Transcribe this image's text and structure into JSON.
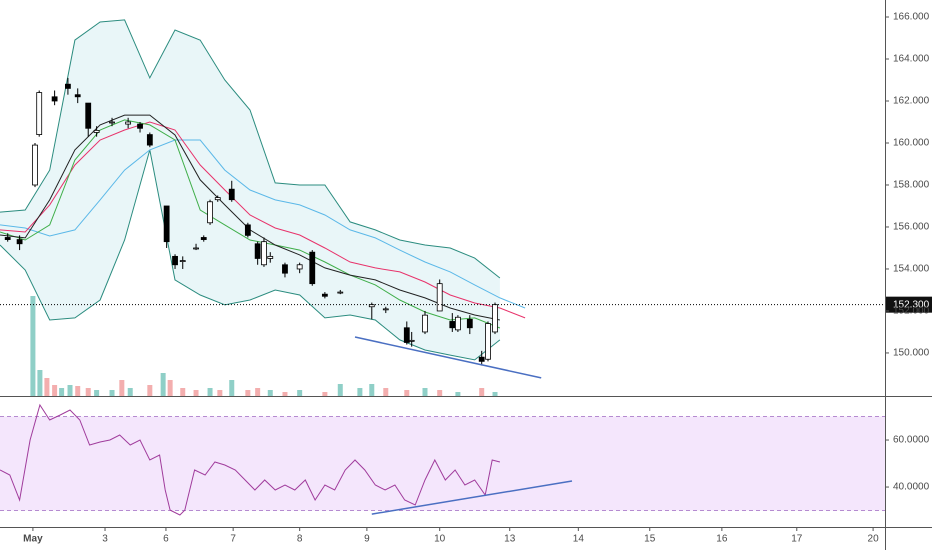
{
  "chart_data": [
    {
      "type": "candlestick",
      "xlim": [
        -0.47,
        12.17
      ],
      "ylim": [
        147.95,
        166.81
      ],
      "yticks": [
        {
          "value": 150,
          "label": "150.000"
        },
        {
          "value": 152,
          "label": "152.000"
        },
        {
          "value": 154,
          "label": "154.000"
        },
        {
          "value": 156,
          "label": "156.000"
        },
        {
          "value": 158,
          "label": "158.000"
        },
        {
          "value": 160,
          "label": "160.000"
        },
        {
          "value": 162,
          "label": "162.000"
        },
        {
          "value": 164,
          "label": "164.000"
        },
        {
          "value": 166,
          "label": "166.000"
        }
      ],
      "candles": {
        "x": [
          -0.36,
          -0.19,
          0.03,
          0.09,
          0.31,
          0.5,
          0.64,
          0.79,
          0.91,
          1.13,
          1.36,
          1.53,
          1.67,
          1.91,
          2.03,
          2.14,
          2.33,
          2.44,
          2.53,
          2.64,
          2.84,
          3.07,
          3.21,
          3.3,
          3.39,
          3.6,
          3.81,
          3.99,
          4.17,
          4.39,
          4.84,
          5.04,
          5.34,
          5.41,
          5.6,
          5.81,
          5.99,
          6.07,
          6.24,
          6.41,
          6.5,
          6.6
        ],
        "open": [
          155.5,
          155.4,
          158.0,
          160.4,
          162.2,
          162.8,
          162.3,
          161.9,
          160.5,
          161.0,
          160.9,
          160.9,
          160.4,
          157.0,
          154.6,
          154.4,
          155.0,
          155.5,
          156.2,
          157.3,
          157.8,
          156.1,
          155.2,
          154.2,
          154.5,
          154.2,
          154.0,
          154.8,
          152.8,
          152.9,
          152.2,
          152.1,
          151.2,
          150.6,
          151.0,
          152.0,
          151.5,
          151.1,
          151.6,
          149.8,
          149.7,
          151.0
        ],
        "high": [
          155.7,
          155.6,
          160.0,
          162.5,
          162.5,
          163.1,
          162.6,
          161.9,
          160.8,
          161.2,
          161.2,
          161.0,
          160.5,
          157.0,
          154.7,
          154.6,
          155.2,
          155.6,
          157.3,
          157.5,
          158.2,
          156.2,
          155.3,
          155.5,
          154.8,
          154.3,
          154.3,
          154.9,
          152.9,
          153.0,
          152.4,
          152.2,
          151.5,
          151.0,
          152.0,
          153.5,
          151.9,
          151.8,
          151.8,
          150.1,
          151.5,
          152.4
        ],
        "low": [
          155.3,
          154.9,
          157.9,
          160.3,
          161.8,
          162.3,
          161.9,
          160.3,
          160.3,
          160.8,
          160.7,
          160.5,
          159.8,
          155.0,
          154.0,
          154.0,
          154.9,
          155.3,
          156.1,
          157.2,
          157.2,
          155.5,
          154.2,
          154.1,
          154.3,
          153.6,
          153.8,
          153.2,
          152.6,
          152.8,
          151.6,
          151.9,
          150.4,
          150.3,
          150.9,
          152.0,
          151.0,
          151.0,
          150.9,
          149.4,
          149.6,
          150.9
        ],
        "close": [
          155.4,
          155.2,
          159.9,
          162.4,
          162.0,
          162.6,
          162.2,
          160.7,
          160.6,
          161.0,
          161.0,
          160.7,
          159.9,
          155.3,
          154.2,
          154.4,
          155.0,
          155.4,
          157.2,
          157.4,
          157.3,
          155.6,
          154.5,
          155.3,
          154.6,
          153.8,
          154.2,
          153.3,
          152.7,
          152.9,
          152.3,
          152.1,
          150.5,
          150.6,
          151.8,
          153.3,
          151.2,
          151.7,
          151.2,
          149.6,
          151.4,
          152.3
        ]
      },
      "x": [
        -0.47,
        -0.11,
        0.24,
        0.6,
        0.96,
        1.31,
        1.67,
        2.03,
        2.39,
        2.74,
        3.1,
        3.46,
        3.81,
        4.17,
        4.53,
        4.89,
        5.24,
        5.6,
        5.96,
        6.31,
        6.67,
        7.03,
        7.39
      ],
      "series": [
        {
          "color": "#2b8c7f",
          "values": [
            156.71,
            156.81,
            158.71,
            164.9,
            165.76,
            165.86,
            163.1,
            165.38,
            164.9,
            163.0,
            161.57,
            158.1,
            158.0,
            158.0,
            156.24,
            155.86,
            155.38,
            155.14,
            155.0,
            154.52,
            153.57,
            null,
            null
          ]
        },
        {
          "color": "#2b8c7f",
          "values": [
            155.14,
            153.95,
            151.57,
            151.67,
            152.52,
            155.38,
            159.67,
            153.48,
            152.76,
            152.29,
            152.52,
            153.0,
            152.76,
            151.67,
            151.81,
            151.57,
            150.62,
            150.14,
            149.9,
            149.67,
            150.62,
            null,
            null
          ]
        },
        {
          "color": "#5bb8e8",
          "values": [
            156.1,
            155.95,
            155.57,
            155.86,
            157.29,
            158.71,
            159.67,
            160.14,
            160.14,
            158.71,
            157.76,
            157.29,
            157.05,
            156.57,
            155.86,
            155.48,
            154.9,
            154.33,
            153.86,
            153.24,
            152.62,
            152.14,
            null
          ]
        },
        {
          "color": "#e8336b",
          "values": [
            155.86,
            155.76,
            157.05,
            158.95,
            160.14,
            160.62,
            161.0,
            160.62,
            158.95,
            157.76,
            156.57,
            155.95,
            155.62,
            155.0,
            154.33,
            154.05,
            153.86,
            153.38,
            152.76,
            152.38,
            152.14,
            151.67,
            null
          ]
        },
        {
          "color": "#3fae49",
          "values": [
            155.76,
            155.38,
            156.1,
            159.19,
            160.62,
            161.1,
            160.86,
            160.14,
            156.81,
            156.1,
            155.38,
            155.14,
            154.9,
            154.33,
            153.71,
            153.24,
            152.52,
            151.95,
            151.57,
            151.67,
            151.19,
            null,
            null
          ]
        },
        {
          "color": "#222222",
          "values": [
            155.62,
            155.48,
            157.29,
            159.67,
            160.86,
            161.33,
            161.33,
            160.38,
            158.24,
            157.05,
            155.86,
            155.14,
            154.67,
            154.05,
            153.71,
            153.48,
            153.0,
            152.62,
            152.14,
            151.81,
            151.57,
            null,
            null
          ]
        }
      ],
      "fill_color": "#e3f4f6",
      "volume": {
        "x": [
          0,
          0.1,
          0.2,
          0.31,
          0.41,
          0.53,
          0.64,
          0.79,
          0.91,
          1.13,
          1.27,
          1.39,
          1.67,
          1.86,
          1.96,
          2.14,
          2.33,
          2.53,
          2.67,
          2.84,
          3.07,
          3.21,
          3.39,
          3.6,
          3.81,
          4.17,
          4.39,
          4.67,
          4.84,
          5.04,
          5.34,
          5.6,
          5.81,
          6.07,
          6.41,
          6.6
        ],
        "values": [
          100,
          26,
          18,
          11,
          8,
          11,
          10,
          8,
          6,
          6,
          16,
          8,
          11,
          23,
          16,
          8,
          6,
          8,
          6,
          16,
          6,
          8,
          6,
          4,
          6,
          4,
          12,
          8,
          12,
          8,
          6,
          8,
          6,
          4,
          8,
          4
        ],
        "colors": [
          "#8fcfc7",
          "#8fcfc7",
          "#f3aeae",
          "#f3aeae",
          "#8fcfc7",
          "#8fcfc7",
          "#f3aeae",
          "#f3aeae",
          "#8fcfc7",
          "#8fcfc7",
          "#f3aeae",
          "#8fcfc7",
          "#f3aeae",
          "#8fcfc7",
          "#f3aeae",
          "#f3aeae",
          "#f3aeae",
          "#8fcfc7",
          "#f3aeae",
          "#8fcfc7",
          "#f3aeae",
          "#f3aeae",
          "#8fcfc7",
          "#f3aeae",
          "#8fcfc7",
          "#f3aeae",
          "#8fcfc7",
          "#8fcfc7",
          "#8fcfc7",
          "#f3aeae",
          "#f3aeae",
          "#8fcfc7",
          "#f3aeae",
          "#8fcfc7",
          "#f3aeae",
          "#8fcfc7"
        ]
      },
      "last_price": {
        "value": 152.3,
        "label": "152.300"
      },
      "trendline": {
        "x": [
          4.6,
          7.26
        ],
        "values": [
          150.76,
          148.81
        ],
        "color": "#4a6fc2"
      }
    },
    {
      "type": "line",
      "xlim": [
        -0.47,
        12.17
      ],
      "ylim": [
        23.0,
        78.3
      ],
      "yticks": [
        {
          "value": 40,
          "label": "40.0000"
        },
        {
          "value": 60,
          "label": "60.0000"
        }
      ],
      "xticks": [
        {
          "value": 0,
          "label": "May"
        },
        {
          "value": 1.03,
          "label": "3"
        },
        {
          "value": 1.9,
          "label": "6"
        },
        {
          "value": 2.86,
          "label": "7"
        },
        {
          "value": 3.81,
          "label": "8"
        },
        {
          "value": 4.77,
          "label": "9"
        },
        {
          "value": 5.81,
          "label": "10"
        },
        {
          "value": 6.81,
          "label": "13"
        },
        {
          "value": 7.79,
          "label": "14"
        },
        {
          "value": 8.81,
          "label": "15"
        },
        {
          "value": 9.84,
          "label": "16"
        },
        {
          "value": 10.91,
          "label": "17"
        },
        {
          "value": 12,
          "label": "20"
        }
      ],
      "bands": [
        30,
        70
      ],
      "band_color": "#f4e6fc",
      "x": [
        -0.47,
        -0.33,
        -0.19,
        -0.04,
        0.1,
        0.24,
        0.39,
        0.53,
        0.67,
        0.81,
        0.96,
        1.1,
        1.24,
        1.39,
        1.53,
        1.67,
        1.81,
        1.89,
        1.96,
        2.1,
        2.17,
        2.31,
        2.46,
        2.6,
        2.74,
        2.89,
        3.03,
        3.17,
        3.31,
        3.46,
        3.6,
        3.74,
        3.89,
        4.03,
        4.17,
        4.31,
        4.46,
        4.6,
        4.74,
        4.89,
        5.03,
        5.17,
        5.31,
        5.46,
        5.6,
        5.74,
        5.89,
        6.03,
        6.17,
        6.31,
        6.46,
        6.56,
        6.67
      ],
      "values": [
        47.23,
        45.11,
        34.47,
        60,
        74.89,
        68.51,
        70.64,
        72.77,
        68.51,
        57.87,
        59.15,
        60,
        62.13,
        57.87,
        60,
        51.49,
        53.62,
        38.72,
        30.21,
        28.09,
        30.21,
        47.23,
        45.11,
        50.64,
        49.36,
        47.23,
        42.98,
        38.72,
        42.98,
        38.72,
        40.85,
        38.72,
        42.98,
        34.47,
        40.85,
        38.72,
        47.23,
        51.49,
        47.23,
        40.85,
        38.72,
        40.85,
        34.47,
        32.34,
        42.98,
        51.49,
        42.98,
        47.23,
        40.85,
        42.98,
        36.6,
        51.49,
        50.64
      ],
      "color": "#a03c9c",
      "trendline": {
        "x": [
          4.84,
          7.7
        ],
        "values": [
          28.5,
          42.55
        ],
        "color": "#4a6fc2"
      }
    }
  ]
}
